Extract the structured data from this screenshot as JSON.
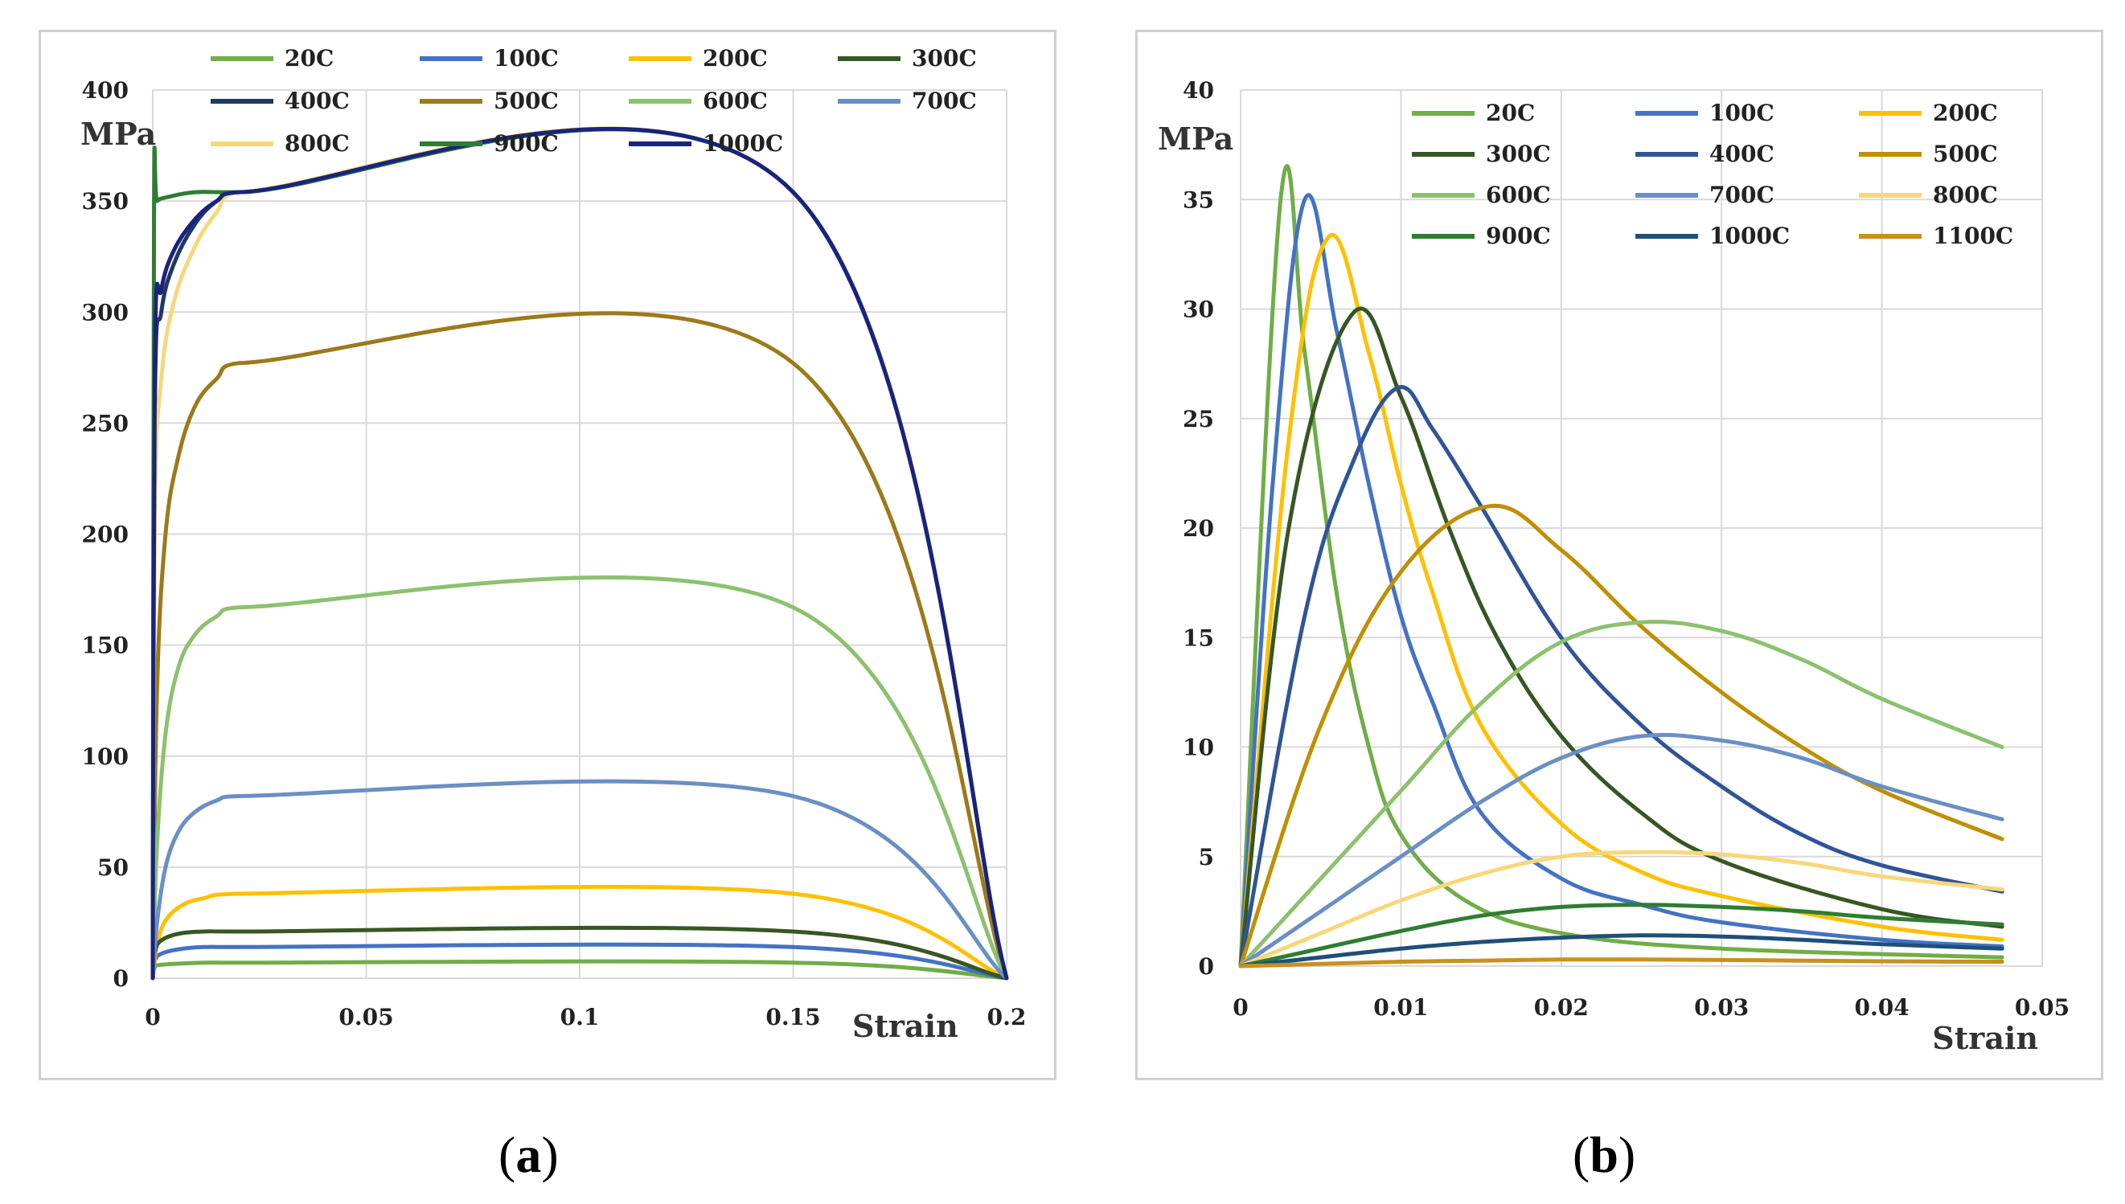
{
  "captions": {
    "a": "a",
    "b": "b"
  },
  "chart_data": [
    {
      "id": "a",
      "type": "line",
      "xlabel": "Strain",
      "ylabel": "MPa",
      "xlim": [
        0,
        0.2
      ],
      "ylim": [
        0,
        400
      ],
      "xticks": [
        0,
        0.05,
        0.1,
        0.15,
        0.2
      ],
      "xtick_labels": [
        "0",
        "0.05",
        "0.1",
        "0.15",
        "0.2"
      ],
      "yticks": [
        0,
        50,
        100,
        150,
        200,
        250,
        300,
        350,
        400
      ],
      "ytick_labels": [
        "0",
        "50",
        "100",
        "150",
        "200",
        "250",
        "300",
        "350",
        "400"
      ],
      "legend_position": "top",
      "legend_columns": 4,
      "series": [
        {
          "name": "20C",
          "color": "#70ad47",
          "x": [
            0,
            0.0005,
            0.002,
            0.006,
            0.012,
            0.02,
            0.15,
            0.2
          ],
          "y": [
            0,
            5,
            6,
            6.5,
            7,
            7,
            7,
            0
          ]
        },
        {
          "name": "100C",
          "color": "#4472c4",
          "x": [
            0,
            0.0005,
            0.002,
            0.006,
            0.012,
            0.02,
            0.15,
            0.2
          ],
          "y": [
            0,
            8,
            11,
            13,
            14,
            14,
            14,
            0
          ]
        },
        {
          "name": "200C",
          "color": "#ffc000",
          "x": [
            0,
            0.001,
            0.003,
            0.007,
            0.012,
            0.02,
            0.15,
            0.2
          ],
          "y": [
            0,
            15,
            26,
            33,
            36,
            38,
            38,
            0
          ]
        },
        {
          "name": "300C",
          "color": "#375623",
          "x": [
            0,
            0.0005,
            0.002,
            0.006,
            0.012,
            0.02,
            0.15,
            0.2
          ],
          "y": [
            0,
            12,
            17,
            20,
            21,
            21,
            21,
            0
          ]
        },
        {
          "name": "400C",
          "color": "#1f3864",
          "x": [
            0,
            0.0005,
            0.002,
            0.005,
            0.01,
            0.015,
            0.02,
            0.15,
            0.2
          ],
          "y": [
            0,
            260,
            300,
            322,
            340,
            350,
            354,
            354,
            0
          ]
        },
        {
          "name": "500C",
          "color": "#9c7a1a",
          "x": [
            0,
            0.001,
            0.003,
            0.006,
            0.01,
            0.015,
            0.02,
            0.15,
            0.2
          ],
          "y": [
            0,
            130,
            200,
            235,
            258,
            270,
            277,
            277,
            0
          ]
        },
        {
          "name": "600C",
          "color": "#8cc16e",
          "x": [
            0,
            0.001,
            0.003,
            0.006,
            0.01,
            0.015,
            0.02,
            0.15,
            0.2
          ],
          "y": [
            0,
            60,
            110,
            140,
            155,
            163,
            167,
            167,
            0
          ]
        },
        {
          "name": "700C",
          "color": "#6a8fc4",
          "x": [
            0,
            0.001,
            0.003,
            0.006,
            0.01,
            0.015,
            0.02,
            0.15,
            0.2
          ],
          "y": [
            0,
            25,
            50,
            66,
            75,
            80,
            82,
            82,
            0
          ]
        },
        {
          "name": "800C",
          "color": "#f8d77a",
          "x": [
            0,
            0.0005,
            0.002,
            0.005,
            0.01,
            0.015,
            0.02,
            0.15,
            0.2
          ],
          "y": [
            0,
            210,
            270,
            305,
            330,
            345,
            354,
            354,
            0
          ]
        },
        {
          "name": "900C",
          "color": "#2e7d32",
          "x": [
            0,
            0.0003,
            0.001,
            0.004,
            0.01,
            0.02,
            0.15,
            0.2
          ],
          "y": [
            0,
            345,
            350,
            352,
            354,
            354,
            354,
            0
          ]
        },
        {
          "name": "1000C",
          "color": "#1a237e",
          "x": [
            0,
            0.0005,
            0.002,
            0.005,
            0.01,
            0.015,
            0.02,
            0.15,
            0.2
          ],
          "y": [
            0,
            280,
            310,
            328,
            342,
            350,
            354,
            354,
            0
          ]
        }
      ]
    },
    {
      "id": "b",
      "type": "line",
      "xlabel": "Strain",
      "ylabel": "MPa",
      "xlim": [
        0,
        0.05
      ],
      "ylim": [
        0,
        40
      ],
      "xticks": [
        0,
        0.01,
        0.02,
        0.03,
        0.04,
        0.05
      ],
      "xtick_labels": [
        "0",
        "0.01",
        "0.02",
        "0.03",
        "0.04",
        "0.05"
      ],
      "yticks": [
        0,
        5,
        10,
        15,
        20,
        25,
        30,
        35,
        40
      ],
      "ytick_labels": [
        "0",
        "5",
        "10",
        "15",
        "20",
        "25",
        "30",
        "35",
        "40"
      ],
      "legend_position": "top-right",
      "legend_columns": 3,
      "series": [
        {
          "name": "20C",
          "color": "#70ad47",
          "x": [
            0,
            0.0025,
            0.004,
            0.006,
            0.008,
            0.01,
            0.014,
            0.02,
            0.03,
            0.0475
          ],
          "y": [
            0,
            35,
            28,
            17,
            10,
            6,
            3,
            1.5,
            0.8,
            0.4
          ]
        },
        {
          "name": "100C",
          "color": "#4472c4",
          "x": [
            0,
            0.002,
            0.004,
            0.006,
            0.008,
            0.01,
            0.012,
            0.015,
            0.02,
            0.025,
            0.03,
            0.04,
            0.0475
          ],
          "y": [
            0,
            22,
            35,
            29,
            22,
            16,
            12,
            7,
            4,
            2.8,
            2,
            1.2,
            0.9
          ]
        },
        {
          "name": "200C",
          "color": "#ffc000",
          "x": [
            0,
            0.003,
            0.0055,
            0.008,
            0.01,
            0.012,
            0.015,
            0.02,
            0.025,
            0.03,
            0.04,
            0.0475
          ],
          "y": [
            0,
            24,
            33.3,
            28,
            22,
            17,
            11,
            6.5,
            4.3,
            3.2,
            1.8,
            1.2
          ]
        },
        {
          "name": "300C",
          "color": "#375623",
          "x": [
            0,
            0.003,
            0.007,
            0.01,
            0.013,
            0.016,
            0.02,
            0.025,
            0.03,
            0.04,
            0.0475
          ],
          "y": [
            0,
            20,
            29.8,
            26,
            20,
            15,
            10.5,
            7,
            4.8,
            2.6,
            1.8
          ]
        },
        {
          "name": "400C",
          "color": "#2f5597",
          "x": [
            0,
            0.004,
            0.007,
            0.0098,
            0.012,
            0.015,
            0.02,
            0.025,
            0.03,
            0.035,
            0.04,
            0.0475
          ],
          "y": [
            0,
            16,
            23,
            26.4,
            24.5,
            21,
            15,
            11,
            8.2,
            6,
            4.6,
            3.4
          ]
        },
        {
          "name": "500C",
          "color": "#bf8f00",
          "x": [
            0,
            0.005,
            0.01,
            0.0155,
            0.02,
            0.025,
            0.03,
            0.035,
            0.04,
            0.0475
          ],
          "y": [
            0,
            11,
            18,
            21,
            19,
            15.5,
            12.5,
            10,
            8,
            5.8
          ]
        },
        {
          "name": "600C",
          "color": "#8cc16e",
          "x": [
            0,
            0.005,
            0.01,
            0.015,
            0.02,
            0.025,
            0.03,
            0.035,
            0.04,
            0.0475
          ],
          "y": [
            0,
            4,
            8,
            12,
            14.8,
            15.7,
            15.3,
            14,
            12.2,
            10
          ]
        },
        {
          "name": "700C",
          "color": "#6a8fc4",
          "x": [
            0,
            0.005,
            0.01,
            0.015,
            0.02,
            0.025,
            0.03,
            0.035,
            0.04,
            0.0475
          ],
          "y": [
            0,
            2.5,
            5,
            7.5,
            9.5,
            10.5,
            10.3,
            9.5,
            8.2,
            6.7
          ]
        },
        {
          "name": "800C",
          "color": "#f8d77a",
          "x": [
            0,
            0.005,
            0.01,
            0.015,
            0.02,
            0.025,
            0.03,
            0.035,
            0.04,
            0.0475
          ],
          "y": [
            0,
            1.5,
            3,
            4.2,
            5,
            5.2,
            5.1,
            4.7,
            4.1,
            3.5
          ]
        },
        {
          "name": "900C",
          "color": "#2e7d32",
          "x": [
            0,
            0.005,
            0.01,
            0.015,
            0.02,
            0.025,
            0.03,
            0.035,
            0.04,
            0.0475
          ],
          "y": [
            0,
            0.8,
            1.6,
            2.3,
            2.7,
            2.8,
            2.7,
            2.5,
            2.2,
            1.9
          ]
        },
        {
          "name": "1000C",
          "color": "#1f4e79",
          "x": [
            0,
            0.005,
            0.01,
            0.015,
            0.02,
            0.025,
            0.03,
            0.035,
            0.04,
            0.0475
          ],
          "y": [
            0,
            0.4,
            0.8,
            1.1,
            1.3,
            1.4,
            1.35,
            1.2,
            1.0,
            0.8
          ]
        },
        {
          "name": "1100C",
          "color": "#c9901e",
          "x": [
            0,
            0.005,
            0.01,
            0.015,
            0.02,
            0.025,
            0.03,
            0.035,
            0.04,
            0.0475
          ],
          "y": [
            0,
            0.1,
            0.2,
            0.25,
            0.3,
            0.3,
            0.28,
            0.25,
            0.22,
            0.2
          ]
        }
      ]
    }
  ]
}
